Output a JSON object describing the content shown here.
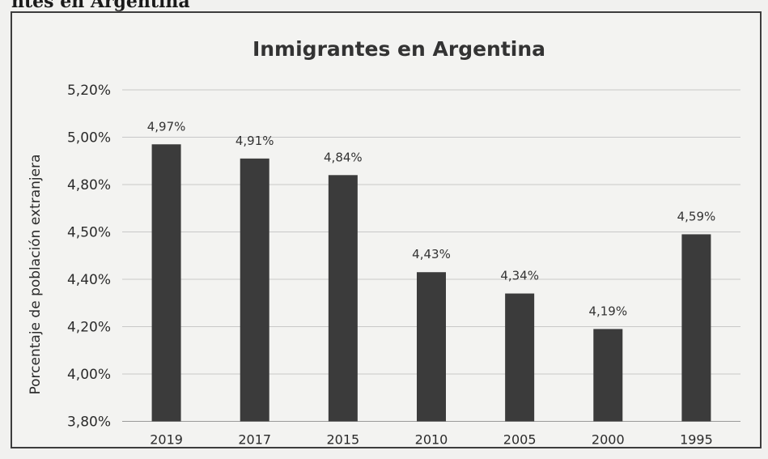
{
  "page": {
    "header_text": "ntes en Argentina"
  },
  "chart_data": {
    "type": "bar",
    "title": "Inmigrantes en Argentina",
    "xlabel": "",
    "ylabel": "Porcentaje de población extranjera",
    "categories": [
      "2019",
      "2017",
      "2015",
      "2010",
      "2005",
      "2000",
      "1995"
    ],
    "values": [
      4.97,
      4.91,
      4.84,
      4.43,
      4.34,
      4.19,
      4.59
    ],
    "data_labels": [
      "4,97%",
      "4,91%",
      "4,84%",
      "4,43%",
      "4,34%",
      "4,19%",
      "4,59%"
    ],
    "y_ticks": [
      "5,20%",
      "5,00%",
      "4,80%",
      "4,50%",
      "4,40%",
      "4,20%",
      "4,00%",
      "3,80%"
    ],
    "ylim": [
      3.8,
      5.2
    ],
    "grid": true,
    "legend": "none",
    "bar_color": "#3b3b3b"
  }
}
